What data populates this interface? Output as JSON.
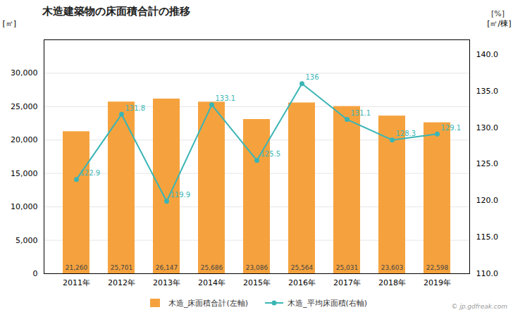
{
  "chart_data": {
    "type": "bar",
    "title": "木造建築物の床面積合計の推移",
    "categories": [
      "2011年",
      "2012年",
      "2013年",
      "2014年",
      "2015年",
      "2016年",
      "2017年",
      "2018年",
      "2019年"
    ],
    "series": [
      {
        "name": "木造_床面積合計(左軸)",
        "type": "bar",
        "color": "#f5a23e",
        "values": [
          21260,
          25701,
          26147,
          25686,
          23086,
          25564,
          25031,
          23603,
          22598
        ],
        "value_labels": [
          "21,260",
          "25,701",
          "26,147",
          "25,686",
          "23,086",
          "25,564",
          "25,031",
          "23,603",
          "22,598"
        ]
      },
      {
        "name": "木造_平均床面積(右軸)",
        "type": "line",
        "axis": "y2",
        "color": "#3ab5b5",
        "marker": "circle",
        "values": [
          122.9,
          131.8,
          119.9,
          133.1,
          125.5,
          136,
          131.1,
          128.3,
          129.1
        ]
      }
    ],
    "ylabel": "[㎡]",
    "y2label": "[㎡/棟]",
    "annotations": [
      "[%]",
      "© jp.gdfreak.com"
    ],
    "ylim": [
      0,
      35000
    ],
    "yticks": [
      0,
      {
        "value": 5000,
        "label": "5,000"
      },
      {
        "value": 10000,
        "label": "10,000"
      },
      {
        "value": 15000,
        "label": "15,000"
      },
      {
        "value": 20000,
        "label": "20,000"
      },
      {
        "value": 25000,
        "label": "25,000"
      },
      {
        "value": 30000,
        "label": "30,000"
      }
    ],
    "y2lim": [
      110,
      142
    ],
    "y2ticks": [
      {
        "value": 110,
        "label": "110.0"
      },
      {
        "value": 115,
        "label": "115.0"
      },
      {
        "value": 120,
        "label": "120.0"
      },
      {
        "value": 125,
        "label": "125.0"
      },
      {
        "value": 130,
        "label": "130.0"
      },
      {
        "value": 135,
        "label": "135.0"
      },
      {
        "value": 140,
        "label": "140.0"
      }
    ],
    "grid": true,
    "legend": "bottom",
    "data_labels": true
  }
}
